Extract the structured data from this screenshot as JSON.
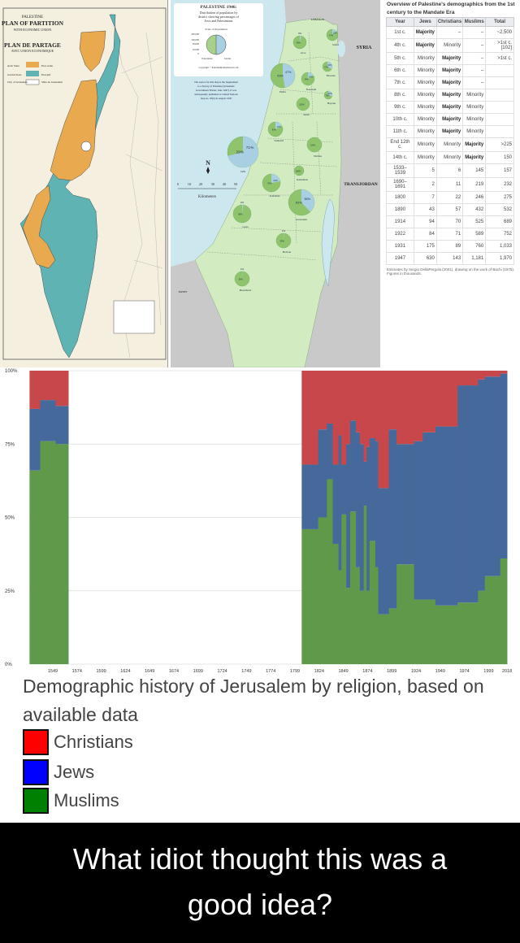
{
  "partition_map": {
    "title_lines": [
      "PALESTINE",
      "PLAN OF PARTITION",
      "WITH ECONOMIC UNION",
      "PLAN DE PARTAGE",
      "AVEC UNION ECONOMIQUE"
    ],
    "legend": [
      {
        "en": "Arab State",
        "fr": "Etat arabe",
        "color": "#e8a94f"
      },
      {
        "en": "Jewish State",
        "fr": "Etat juif",
        "color": "#5fb3b3"
      },
      {
        "en": "City of Jerusalem",
        "fr": "Ville de Jérusalem",
        "color": "#ffffff"
      }
    ]
  },
  "population_map": {
    "title": "PALESTINE 1946:",
    "subtitle": [
      "Distribution of population by",
      "district showing percentages of",
      "Jews and Palestinians"
    ],
    "scale_title": "Scale of Population",
    "scale_values": [
      "200,000",
      "100,000",
      "50,000",
      "10,000",
      "0"
    ],
    "scale_labels": [
      "Palestinian",
      "Jewish"
    ],
    "copyright": "Copyright © PalestineRemembered.com",
    "source_note": [
      "The source for this map is the Supplement",
      "to a Survey of Palestine (Jerusalem:",
      "Government Printer, June 1947). It was",
      "subsequently published as United Nations",
      "map no. 93(b) in August 1950"
    ],
    "neighbors": {
      "lebanon": "LEBANON",
      "syria": "SYRIA",
      "transjordan": "TRANSJORDAN",
      "egypt": "EGYPT"
    },
    "scale_bar": {
      "ticks": [
        "0",
        "10",
        "20",
        "30",
        "40",
        "50"
      ],
      "unit": "Kilometers",
      "north": "N"
    },
    "districts": [
      {
        "name": "Safad",
        "palestinian": "87%",
        "jewish": "13%",
        "jewish_share": 13
      },
      {
        "name": "Acre",
        "palestinian": "96%",
        "jewish": "4%",
        "jewish_share": 4
      },
      {
        "name": "Haifa",
        "palestinian": "53%",
        "jewish": "47%",
        "jewish_share": 47
      },
      {
        "name": "Tiberias",
        "palestinian": "67%",
        "jewish": "33%",
        "jewish_share": 33
      },
      {
        "name": "Nazareth",
        "palestinian": "84%",
        "jewish": "16%",
        "jewish_share": 16
      },
      {
        "name": "Baysan",
        "palestinian": "70%",
        "jewish": "30%",
        "jewish_share": 30
      },
      {
        "name": "Jenin",
        "palestinian": "100%",
        "jewish": "",
        "jewish_share": 0
      },
      {
        "name": "Tulkarm",
        "palestinian": "83%",
        "jewish": "17%",
        "jewish_share": 17
      },
      {
        "name": "Nablus",
        "palestinian": "100%",
        "jewish": "",
        "jewish_share": 0
      },
      {
        "name": "Jaffa",
        "palestinian": "29%",
        "jewish": "71%",
        "jewish_share": 71
      },
      {
        "name": "Ramallah",
        "palestinian": "100%",
        "jewish": "",
        "jewish_share": 0
      },
      {
        "name": "al-Ramla",
        "palestinian": "78%",
        "jewish": "22%",
        "jewish_share": 22
      },
      {
        "name": "Jerusalem",
        "palestinian": "62%",
        "jewish": "38%",
        "jewish_share": 38
      },
      {
        "name": "Gaza",
        "palestinian": "98%",
        "jewish": "2%",
        "jewish_share": 2
      },
      {
        "name": "Hebron",
        "palestinian": "99%",
        "jewish": "1%",
        "jewish_share": 1
      },
      {
        "name": "Beersheba",
        "palestinian": "99%",
        "jewish": "1%",
        "jewish_share": 1
      }
    ]
  },
  "table": {
    "title": "Overview of Palestine's demographics from the 1st century to the Mandate Era",
    "headers": [
      "Year",
      "Jews",
      "Christians",
      "Muslims",
      "Total"
    ],
    "rows": [
      [
        "1st c.",
        "Majority",
        "–",
        "–",
        "~2,500"
      ],
      [
        "4th c.",
        "Majority",
        "Minority",
        "–",
        ">1st c.[102]"
      ],
      [
        "5th c.",
        "Minority",
        "Majority",
        "–",
        ">1st c."
      ],
      [
        "6th c.",
        "Minority",
        "Majority",
        "–",
        ""
      ],
      [
        "7th c.",
        "Minority",
        "Majority",
        "–",
        ""
      ],
      [
        "8th c.",
        "Minority",
        "Majority",
        "Minority",
        ""
      ],
      [
        "9th c.",
        "Minority",
        "Majority",
        "Minority",
        ""
      ],
      [
        "10th c.",
        "Minority",
        "Majority",
        "Minority",
        ""
      ],
      [
        "11th c.",
        "Minority",
        "Majority",
        "Minority",
        ""
      ],
      [
        "End 12th c.",
        "Minority",
        "Minority",
        "Majority",
        ">225"
      ],
      [
        "14th c.",
        "Minority",
        "Minority",
        "Majority",
        "150"
      ],
      [
        "1533–1539",
        "5",
        "6",
        "145",
        "157"
      ],
      [
        "1690–1691",
        "2",
        "11",
        "219",
        "232"
      ],
      [
        "1800",
        "7",
        "22",
        "246",
        "275"
      ],
      [
        "1890",
        "43",
        "57",
        "432",
        "532"
      ],
      [
        "1914",
        "94",
        "70",
        "525",
        "689"
      ],
      [
        "1922",
        "84",
        "71",
        "589",
        "752"
      ],
      [
        "1931",
        "175",
        "89",
        "760",
        "1,033"
      ],
      [
        "1947",
        "630",
        "143",
        "1,181",
        "1,970"
      ]
    ],
    "footnote": "Estimates by Sergio DellaPergola (2001), drawing on the work of Bachi (1975). Figures in thousands."
  },
  "chart_data": {
    "type": "area",
    "stacked": true,
    "normalized": true,
    "xlim": [
      1524,
      2018
    ],
    "ylim": [
      0,
      100
    ],
    "x_ticks": [
      "1549",
      "1574",
      "1599",
      "1624",
      "1649",
      "1674",
      "1699",
      "1724",
      "1749",
      "1774",
      "1799",
      "1824",
      "1849",
      "1874",
      "1899",
      "1924",
      "1949",
      "1974",
      "1999",
      "2018"
    ],
    "y_ticks": [
      "0%",
      "25%",
      "50%",
      "75%",
      "100%"
    ],
    "grid": true,
    "colors": {
      "Muslims": "#5e9a4a",
      "Jews": "#46699b",
      "Christians": "#c8474a"
    },
    "series_order": [
      "Muslims",
      "Jews",
      "Christians"
    ],
    "segments": [
      {
        "start": 1525,
        "end": 1536,
        "Muslims": 66,
        "Jews": 21,
        "Christians": 13
      },
      {
        "start": 1536,
        "end": 1552,
        "Muslims": 76,
        "Jews": 14,
        "Christians": 10
      },
      {
        "start": 1552,
        "end": 1565,
        "Muslims": 75,
        "Jews": 13,
        "Christians": 12
      },
      {
        "start": 1806,
        "end": 1823,
        "Muslims": 46,
        "Jews": 22,
        "Christians": 32
      },
      {
        "start": 1823,
        "end": 1832,
        "Muslims": 50,
        "Jews": 30,
        "Christians": 20
      },
      {
        "start": 1832,
        "end": 1838,
        "Muslims": 63,
        "Jews": 19,
        "Christians": 18
      },
      {
        "start": 1838,
        "end": 1844,
        "Muslims": 41,
        "Jews": 27,
        "Christians": 32
      },
      {
        "start": 1844,
        "end": 1847,
        "Muslims": 32,
        "Jews": 46,
        "Christians": 22
      },
      {
        "start": 1847,
        "end": 1852,
        "Muslims": 51,
        "Jews": 17,
        "Christians": 32
      },
      {
        "start": 1852,
        "end": 1856,
        "Muslims": 26,
        "Jews": 49,
        "Christians": 25
      },
      {
        "start": 1856,
        "end": 1862,
        "Muslims": 52,
        "Jews": 31,
        "Christians": 17
      },
      {
        "start": 1862,
        "end": 1866,
        "Muslims": 33,
        "Jews": 46,
        "Christians": 21
      },
      {
        "start": 1866,
        "end": 1870,
        "Muslims": 25,
        "Jews": 50,
        "Christians": 25
      },
      {
        "start": 1870,
        "end": 1873,
        "Muslims": 54,
        "Jews": 15,
        "Christians": 31
      },
      {
        "start": 1873,
        "end": 1876,
        "Muslims": 25,
        "Jews": 49,
        "Christians": 26
      },
      {
        "start": 1876,
        "end": 1882,
        "Muslims": 42,
        "Jews": 35,
        "Christians": 23
      },
      {
        "start": 1882,
        "end": 1885,
        "Muslims": 33,
        "Jews": 43,
        "Christians": 24
      },
      {
        "start": 1885,
        "end": 1896,
        "Muslims": 17,
        "Jews": 43,
        "Christians": 40
      },
      {
        "start": 1896,
        "end": 1904,
        "Muslims": 19,
        "Jews": 61,
        "Christians": 20
      },
      {
        "start": 1904,
        "end": 1922,
        "Muslims": 34,
        "Jews": 41,
        "Christians": 25
      },
      {
        "start": 1922,
        "end": 1931,
        "Muslims": 22,
        "Jews": 54,
        "Christians": 24
      },
      {
        "start": 1931,
        "end": 1944,
        "Muslims": 22,
        "Jews": 57,
        "Christians": 21
      },
      {
        "start": 1944,
        "end": 1967,
        "Muslims": 20,
        "Jews": 61,
        "Christians": 19
      },
      {
        "start": 1967,
        "end": 1988,
        "Muslims": 21,
        "Jews": 74,
        "Christians": 5
      },
      {
        "start": 1988,
        "end": 1995,
        "Muslims": 25,
        "Jews": 72,
        "Christians": 3
      },
      {
        "start": 1995,
        "end": 2011,
        "Muslims": 30,
        "Jews": 68,
        "Christians": 2
      },
      {
        "start": 2011,
        "end": 2018,
        "Muslims": 36,
        "Jews": 63,
        "Christians": 1
      }
    ]
  },
  "caption": {
    "line1": "Demographic history of Jerusalem by religion, based on",
    "line2": "available data",
    "legend": [
      {
        "label": "Christians",
        "color": "#ff0000"
      },
      {
        "label": "Jews",
        "color": "#0000ff"
      },
      {
        "label": "Muslims",
        "color": "#008000"
      }
    ]
  },
  "banner": {
    "line1": "What idiot thought this was a",
    "line2": "good idea?"
  }
}
